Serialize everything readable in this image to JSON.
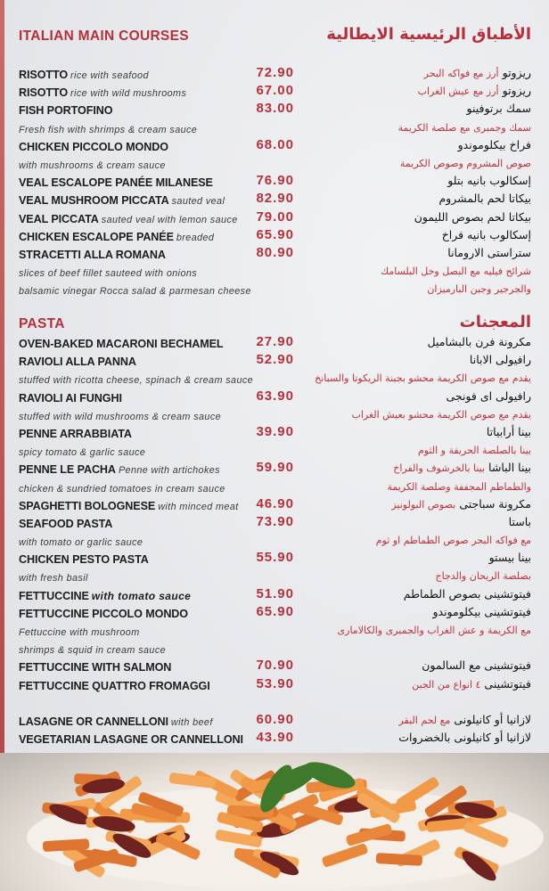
{
  "sections": [
    {
      "title_en": "ITALIAN MAIN COURSES",
      "title_ar": "الأطباق الرئيسية الايطالية",
      "lines": [
        {
          "name": "RISOTTO",
          "desc": "rice with seafood",
          "price": "72.90",
          "ar": "ريزوتو",
          "ar_red": "أرز مع فواكه البحر"
        },
        {
          "name": "RISOTTO",
          "desc": "rice with wild mushrooms",
          "price": "67.00",
          "ar": "ريزوتو",
          "ar_red": "أرز مع عيش الغراب"
        },
        {
          "name": "FISH PORTOFINO",
          "price": "83.00",
          "ar": "سمك برتوفينو"
        },
        {
          "desc": "Fresh fish with shrimps & cream sauce",
          "ar_red": "سمك وجمبرى مع صلصة الكريمة"
        },
        {
          "name": "CHICKEN PICCOLO MONDO",
          "price": "68.00",
          "ar": "فراخ بيكلوموندو"
        },
        {
          "desc": "with mushrooms & cream sauce",
          "ar_red": "صوص المشروم وصوص الكريمة"
        },
        {
          "name": "VEAL ESCALOPE PANÉE MILANESE",
          "price": "76.90",
          "ar": "إسكالوب بانيه بتلو"
        },
        {
          "name": "VEAL MUSHROOM PICCATA",
          "desc": "sauted veal",
          "price": "82.90",
          "ar": "بيكاتا لحم بالمشروم"
        },
        {
          "name": "VEAL PICCATA",
          "desc": "sauted veal with lemon sauce",
          "price": "79.00",
          "ar": "بيكاتا لحم بصوص الليمون"
        },
        {
          "name": "CHICKEN ESCALOPE PANÉE",
          "desc": "breaded",
          "price": "65.90",
          "ar": "إسكالوب بانيه فراخ"
        },
        {
          "name": "STRACETTI ALLA ROMANA",
          "price": "80.90",
          "ar": "ستراستى الارومانا"
        },
        {
          "desc": "slices of beef fillet sauteed with onions",
          "ar_red": "شرائح فيليه مع البصل وخل البلسامك"
        },
        {
          "desc": "balsamic vinegar Rocca salad & parmesan cheese",
          "ar_red": "والجرجير وجبن البارميزان"
        }
      ]
    },
    {
      "title_en": "PASTA",
      "title_ar": "المعجنات",
      "lines": [
        {
          "name": "OVEN-BAKED MACARONI BECHAMEL",
          "price": "27.90",
          "ar": "مكرونة فرن بالبشاميل"
        },
        {
          "name": "RAVIOLI ALLA PANNA",
          "price": "52.90",
          "ar": "رافيولى الابانا"
        },
        {
          "desc": "stuffed with ricotta cheese, spinach & cream sauce",
          "ar_red": "يقدم مع صوص الكريمة محشو بجبنة الريكوتا والسبانخ"
        },
        {
          "name": "RAVIOLI AI FUNGHI",
          "price": "63.90",
          "ar": "رافيولى اى فونجى"
        },
        {
          "desc": "stuffed with wild mushrooms & cream sauce",
          "ar_red": "يقدم مع صوص الكريمة محشو بعيش الغراب"
        },
        {
          "name": "PENNE ARRABBIATA",
          "price": "39.90",
          "ar": "بينا أرابياتا"
        },
        {
          "desc": "spicy tomato & garlic sauce",
          "ar_red": "بينا بالصلصة الحريفة و الثوم"
        },
        {
          "name": "PENNE LE PACHA",
          "desc": "Penne with artichokes",
          "price": "59.90",
          "ar": "بينا الباشا",
          "ar_red": "بينا بالخرشوف والفراخ"
        },
        {
          "desc": "chicken & sundried tomatoes in cream sauce",
          "ar_red": "والطماطم المجففة وصلصة الكريمة"
        },
        {
          "name": "SPAGHETTI BOLOGNESE",
          "desc": "with minced meat",
          "price": "46.90",
          "ar": "مكرونة سباجتى",
          "ar_red": "بصوص البولونيز"
        },
        {
          "name": "SEAFOOD PASTA",
          "price": "73.90",
          "ar": "باستا"
        },
        {
          "desc": "with tomato or garlic sauce",
          "ar_red": "مع فواكه البحر  صوص الطماطم او ثوم"
        },
        {
          "name": "CHICKEN PESTO PASTA",
          "price": "55.90",
          "ar": "بينا بيستو"
        },
        {
          "desc": "with fresh basil",
          "ar_red": "بصلصة الريحان والدجاج"
        },
        {
          "name": "FETTUCCINE",
          "desc": "with tomato sauce",
          "desc_bold": true,
          "price": "51.90",
          "ar": "فيتوتشينى بصوص الطماطم"
        },
        {
          "name": "FETTUCCINE PICCOLO MONDO",
          "price": "65.90",
          "ar": "فيتوتشينى بيكلوموندو"
        },
        {
          "desc": "Fettuccine with mushroom",
          "ar_red": "مع الكريمة و عش الغراب والجمبرى والكالامارى"
        },
        {
          "desc": " shrimps & squid in cream sauce"
        },
        {
          "name": "FETTUCCINE WITH SALMON",
          "price": "70.90",
          "ar": "فيتوتشينى مع السالمون"
        },
        {
          "name": "FETTUCCINE QUATTRO FROMAGGI",
          "price": "53.90",
          "ar": "فيتوتشينى",
          "ar_red": "٤ انواع من الجبن"
        },
        {},
        {
          "name": "LASAGNE OR CANNELLONI",
          "desc": "with beef",
          "price": "60.90",
          "ar": "لازانيا  أو كانيلونى",
          "ar_red": "مع لحم البقر"
        },
        {
          "name": "VEGETARIAN LASAGNE OR CANNELLONI",
          "price": "43.90",
          "ar": "لازانيا أو كانيلونى بالخضروات"
        }
      ]
    }
  ],
  "photo": {
    "subject": "penne pasta with sun-dried tomatoes and basil"
  },
  "colors": {
    "accent": "#b5303a",
    "background": "#e9eaec",
    "text": "#1d1d1f"
  }
}
